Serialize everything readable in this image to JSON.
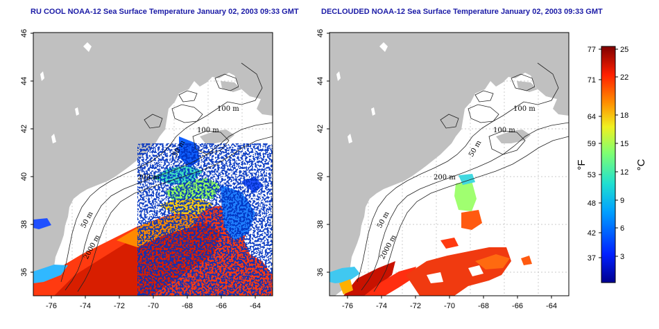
{
  "titles": {
    "left": "RU COOL NOAA-12 Sea Surface Temperature January 02, 2003 09:33 GMT",
    "right": "DECLOUDED NOAA-12 Sea Surface Temperature January 02, 2003 09:33 GMT"
  },
  "map": {
    "lat_ticks": [
      "36",
      "38",
      "40",
      "42",
      "44",
      "46"
    ],
    "lon_ticks": [
      "-76",
      "-74",
      "-72",
      "-70",
      "-68",
      "-66",
      "-64"
    ],
    "contour_labels": [
      "100 m",
      "100 m",
      "50 m",
      "200 m",
      "50 m",
      "2000 m"
    ],
    "land_color": "#c0c0c0",
    "ocean_color": "#ffffff",
    "grid": true
  },
  "colorbar": {
    "fahrenheit_ticks": [
      "77",
      "71",
      "64",
      "59",
      "53",
      "48",
      "42",
      "37"
    ],
    "celsius_ticks": [
      "25",
      "22",
      "18",
      "15",
      "12",
      "9",
      "6",
      "3"
    ],
    "fahrenheit_unit": "°F",
    "celsius_unit": "°C",
    "range_celsius": [
      0,
      25
    ]
  }
}
